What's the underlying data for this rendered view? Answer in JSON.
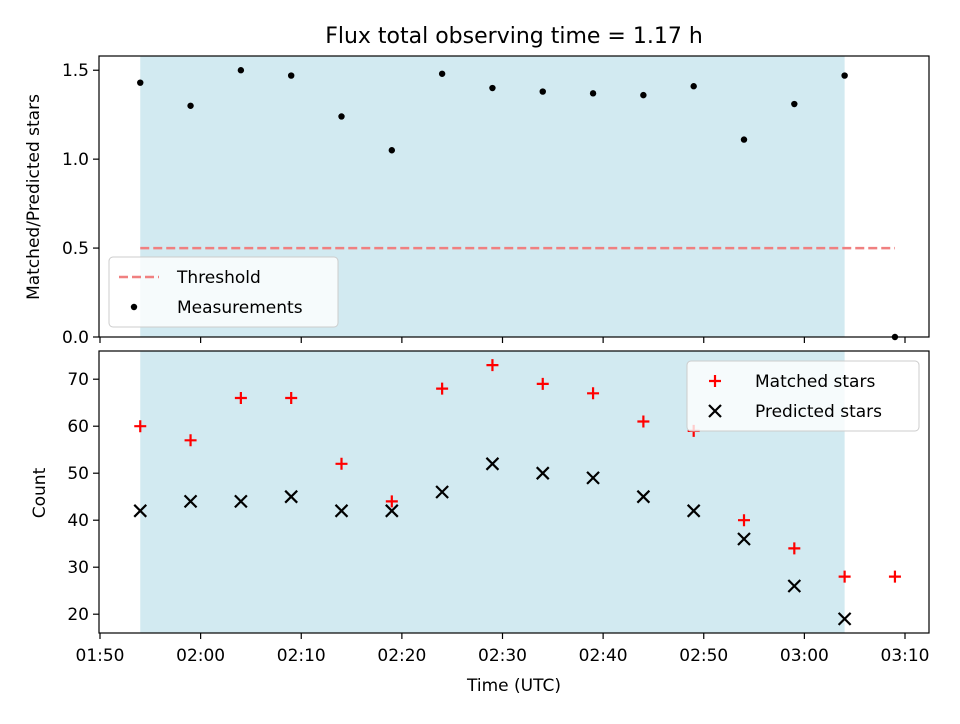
{
  "chart_data": {
    "type": "scatter",
    "title": "Flux total observing time = 1.17 h",
    "xlabel": "Time (UTC)",
    "x_ticks": [
      "01:50",
      "02:00",
      "02:10",
      "02:20",
      "02:30",
      "02:40",
      "02:50",
      "03:00",
      "03:10"
    ],
    "xlim": [
      "01:50",
      "03:12"
    ],
    "shaded_span": {
      "from": "01:54",
      "to": "03:04",
      "color": "#add8e6"
    },
    "panels": [
      {
        "ylabel": "Matched/Predicted stars",
        "ylim": [
          0,
          1.58
        ],
        "y_ticks": [
          "0.0",
          "0.5",
          "1.0",
          "1.5"
        ],
        "legend_position": "lower-left",
        "threshold": {
          "name": "Threshold",
          "value": 0.5,
          "from": "01:54",
          "to": "03:09",
          "color": "#f08080"
        },
        "series": [
          {
            "name": "Measurements",
            "marker": "dot",
            "color": "#000000",
            "x": [
              "01:54",
              "01:59",
              "02:04",
              "02:09",
              "02:14",
              "02:19",
              "02:24",
              "02:29",
              "02:34",
              "02:39",
              "02:44",
              "02:49",
              "02:54",
              "02:59",
              "03:04",
              "03:09"
            ],
            "values": [
              1.43,
              1.3,
              1.5,
              1.47,
              1.24,
              1.05,
              1.48,
              1.4,
              1.38,
              1.37,
              1.36,
              1.41,
              1.11,
              1.31,
              1.47,
              0.0
            ]
          }
        ]
      },
      {
        "ylabel": "Count",
        "ylim": [
          16,
          76
        ],
        "y_ticks": [
          "20",
          "30",
          "40",
          "50",
          "60",
          "70"
        ],
        "legend_position": "upper-right",
        "series": [
          {
            "name": "Matched stars",
            "marker": "plus",
            "color": "#ff0000",
            "x": [
              "01:54",
              "01:59",
              "02:04",
              "02:09",
              "02:14",
              "02:19",
              "02:24",
              "02:29",
              "02:34",
              "02:39",
              "02:44",
              "02:49",
              "02:54",
              "02:59",
              "03:04",
              "03:09"
            ],
            "values": [
              60,
              57,
              66,
              66,
              52,
              44,
              68,
              73,
              69,
              67,
              61,
              59,
              40,
              34,
              28,
              28
            ]
          },
          {
            "name": "Predicted stars",
            "marker": "cross",
            "color": "#000000",
            "x": [
              "01:54",
              "01:59",
              "02:04",
              "02:09",
              "02:14",
              "02:19",
              "02:24",
              "02:29",
              "02:34",
              "02:39",
              "02:44",
              "02:49",
              "02:54",
              "02:59",
              "03:04"
            ],
            "values": [
              42,
              44,
              44,
              45,
              42,
              42,
              46,
              52,
              50,
              49,
              45,
              42,
              36,
              26,
              19
            ]
          }
        ]
      }
    ]
  }
}
